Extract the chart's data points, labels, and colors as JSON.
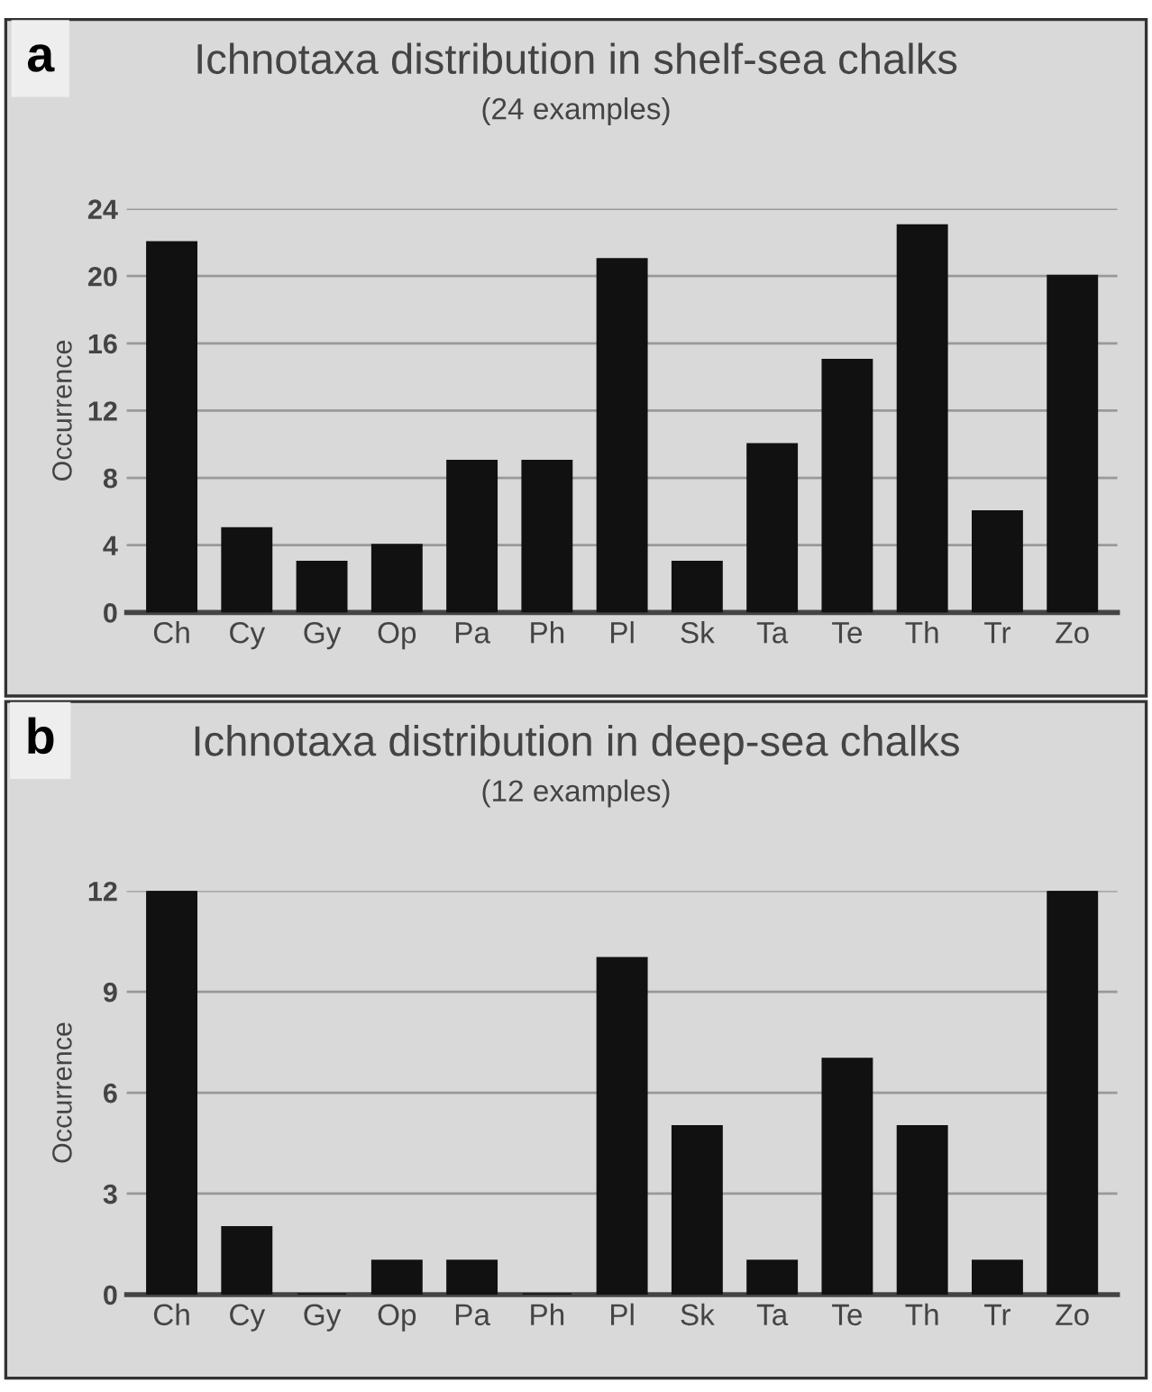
{
  "chart_data": [
    {
      "type": "bar",
      "title": "Ichnotaxa distribution in shelf-sea chalks",
      "subtitle": "(24 examples)",
      "ylabel": "Occurrence",
      "annotations": [
        "a"
      ],
      "categories": [
        "Ch",
        "Cy",
        "Gy",
        "Op",
        "Pa",
        "Ph",
        "Pl",
        "Sk",
        "Ta",
        "Te",
        "Th",
        "Tr",
        "Zo"
      ],
      "values": [
        22,
        5,
        3,
        4,
        9,
        9,
        21,
        3,
        10,
        15,
        23,
        6,
        20
      ],
      "color": "#111111",
      "ylim": [
        0,
        24
      ],
      "yticks": [
        0,
        4,
        8,
        12,
        16,
        20,
        24
      ],
      "grid": "y"
    },
    {
      "type": "bar",
      "title": "Ichnotaxa distribution in deep-sea chalks",
      "subtitle": "(12 examples)",
      "ylabel": "Occurrence",
      "annotations": [
        "b"
      ],
      "categories": [
        "Ch",
        "Cy",
        "Gy",
        "Op",
        "Pa",
        "Ph",
        "Pl",
        "Sk",
        "Ta",
        "Te",
        "Th",
        "Tr",
        "Zo"
      ],
      "values": [
        12,
        2,
        0,
        1,
        1,
        0,
        10,
        5,
        1,
        7,
        5,
        1,
        12
      ],
      "color": "#111111",
      "ylim": [
        0,
        12
      ],
      "yticks": [
        0,
        3,
        6,
        9,
        12
      ],
      "grid": "y"
    }
  ]
}
